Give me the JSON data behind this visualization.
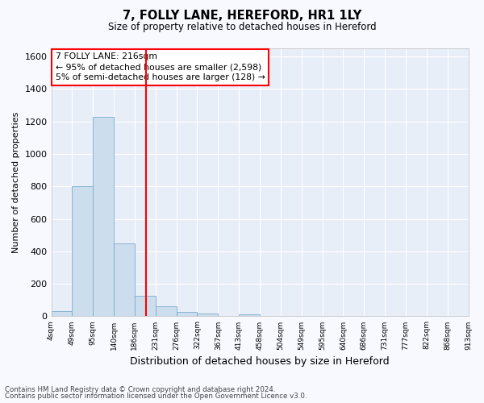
{
  "title1": "7, FOLLY LANE, HEREFORD, HR1 1LY",
  "title2": "Size of property relative to detached houses in Hereford",
  "xlabel": "Distribution of detached houses by size in Hereford",
  "ylabel": "Number of detached properties",
  "footnote1": "Contains HM Land Registry data © Crown copyright and database right 2024.",
  "footnote2": "Contains public sector information licensed under the Open Government Licence v3.0.",
  "bar_values": [
    30,
    800,
    1230,
    450,
    125,
    60,
    25,
    15,
    0,
    10,
    0,
    0,
    0,
    0,
    0,
    0,
    0,
    0,
    0,
    0
  ],
  "bin_labels": [
    "4sqm",
    "49sqm",
    "95sqm",
    "140sqm",
    "186sqm",
    "231sqm",
    "276sqm",
    "322sqm",
    "367sqm",
    "413sqm",
    "458sqm",
    "504sqm",
    "549sqm",
    "595sqm",
    "640sqm",
    "686sqm",
    "731sqm",
    "777sqm",
    "822sqm",
    "868sqm",
    "913sqm"
  ],
  "bar_color": "#ccdded",
  "bar_edge_color": "#7aaccc",
  "bg_color": "#e8eef8",
  "grid_color": "#ffffff",
  "red_line_x": 4.55,
  "annotation_text_line1": "7 FOLLY LANE: 216sqm",
  "annotation_text_line2": "← 95% of detached houses are smaller (2,598)",
  "annotation_text_line3": "5% of semi-detached houses are larger (128) →",
  "ylim": [
    0,
    1650
  ],
  "yticks": [
    0,
    200,
    400,
    600,
    800,
    1000,
    1200,
    1400,
    1600
  ],
  "fig_bg": "#f8f8ff"
}
